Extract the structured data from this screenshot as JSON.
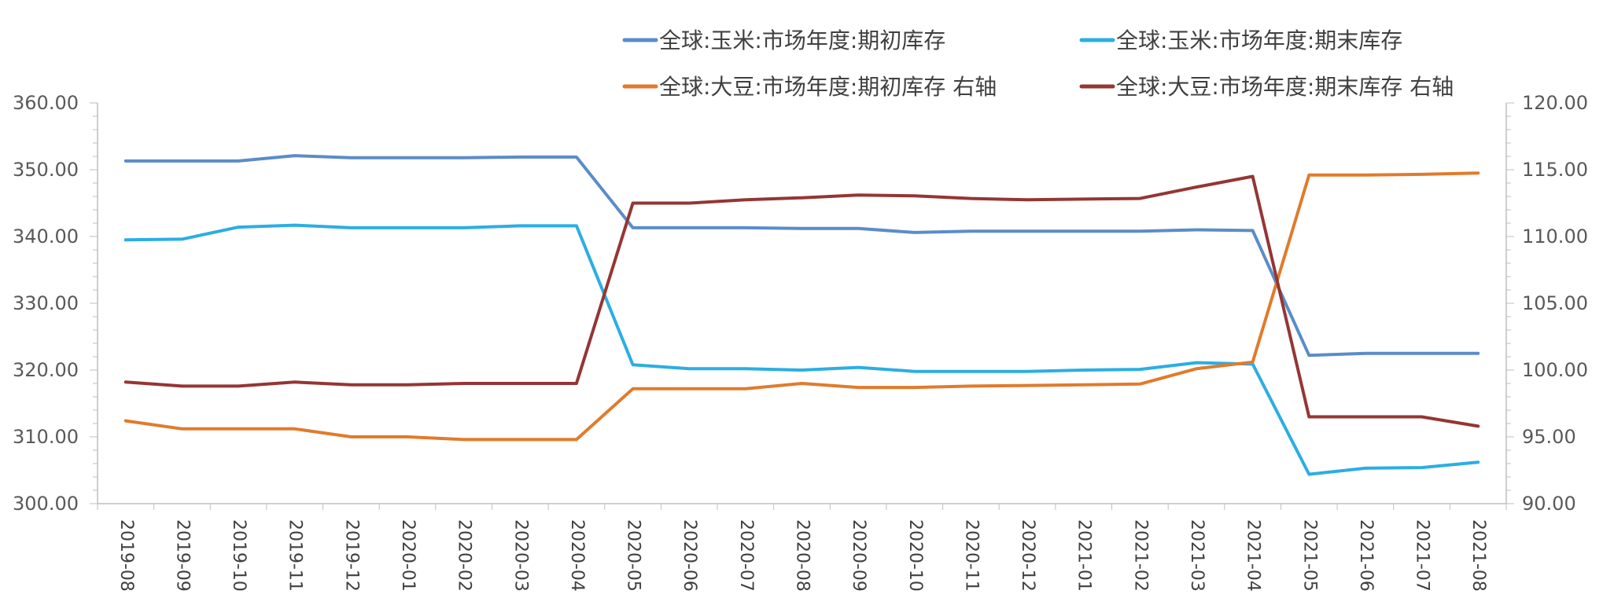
{
  "chart_data": {
    "type": "line",
    "categories": [
      "2019-08",
      "2019-09",
      "2019-10",
      "2019-11",
      "2019-12",
      "2020-01",
      "2020-02",
      "2020-03",
      "2020-04",
      "2020-05",
      "2020-06",
      "2020-07",
      "2020-08",
      "2020-09",
      "2020-10",
      "2020-11",
      "2020-12",
      "2021-01",
      "2021-02",
      "2021-03",
      "2021-04",
      "2021-05",
      "2021-06",
      "2021-07",
      "2021-08"
    ],
    "y_left": {
      "min": 300,
      "max": 360,
      "step": 10,
      "ticks": [
        "300.00",
        "310.00",
        "320.00",
        "330.00",
        "340.00",
        "350.00",
        "360.00"
      ]
    },
    "y_right": {
      "min": 90,
      "max": 120,
      "step": 5,
      "ticks": [
        "90.00",
        "95.00",
        "100.00",
        "105.00",
        "110.00",
        "115.00",
        "120.00"
      ]
    },
    "grid": false,
    "legend_position": "top-right",
    "series": [
      {
        "name": "全球:玉米:市场年度:期初库存",
        "axis": "left",
        "color": "#5B8CC9",
        "values": [
          351.3,
          351.3,
          351.3,
          352.1,
          351.8,
          351.8,
          351.8,
          351.9,
          351.9,
          341.3,
          341.3,
          341.3,
          341.2,
          341.2,
          340.6,
          340.8,
          340.8,
          340.8,
          340.8,
          341.0,
          340.9,
          322.2,
          322.5,
          322.5,
          322.5
        ]
      },
      {
        "name": "全球:玉米:市场年度:期末库存",
        "axis": "left",
        "color": "#2BAEE3",
        "values": [
          339.5,
          339.6,
          341.4,
          341.7,
          341.3,
          341.3,
          341.3,
          341.6,
          341.6,
          320.8,
          320.2,
          320.2,
          320.0,
          320.4,
          319.8,
          319.8,
          319.8,
          320.0,
          320.1,
          321.1,
          320.9,
          304.4,
          305.3,
          305.4,
          306.2
        ]
      },
      {
        "name": "全球:大豆:市场年度:期初库存 右轴",
        "axis": "right",
        "color": "#E07B2C",
        "values": [
          96.2,
          95.6,
          95.6,
          95.6,
          95.0,
          95.0,
          94.8,
          94.8,
          94.8,
          98.6,
          98.6,
          98.6,
          99.0,
          98.7,
          98.7,
          98.8,
          98.85,
          98.9,
          98.95,
          100.1,
          100.6,
          114.6,
          114.6,
          114.65,
          114.75
        ]
      },
      {
        "name": "全球:大豆:市场年度:期末库存 右轴",
        "axis": "right",
        "color": "#943634",
        "values": [
          99.1,
          98.8,
          98.8,
          99.1,
          98.9,
          98.9,
          99.0,
          99.0,
          99.0,
          112.5,
          112.5,
          112.75,
          112.9,
          113.1,
          113.05,
          112.85,
          112.75,
          112.8,
          112.85,
          113.7,
          114.5,
          96.5,
          96.5,
          96.5,
          95.8
        ]
      }
    ]
  }
}
